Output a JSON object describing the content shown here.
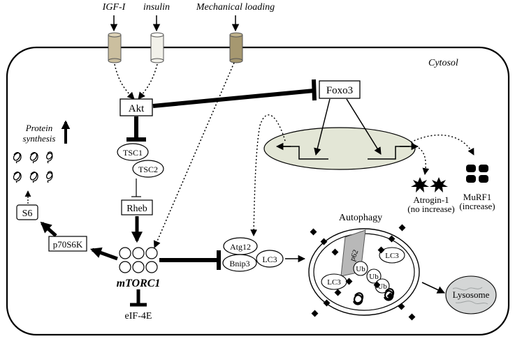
{
  "inputs": {
    "igf1": "IGF-I",
    "insulin": "insulin",
    "mechanical": "Mechanical loading"
  },
  "compartment": "Cytosol",
  "nodes": {
    "akt": "Akt",
    "foxo3": "Foxo3",
    "tsc1": "TSC1",
    "tsc2": "TSC2",
    "rheb": "Rheb",
    "mtorc1": "mTORC1",
    "eif4e": "eIF-4E",
    "p70s6k": "p70S6K",
    "s6": "S6",
    "protein_synthesis_line1": "Protein",
    "protein_synthesis_line2": "synthesis",
    "atg12": "Atg12",
    "bnip3": "Bnip3",
    "lc3": "LC3",
    "autophagy": "Autophagy",
    "lysosome": "Lysosome",
    "p62": "p62",
    "lc3_a": "LC3",
    "lc3_b": "LC3",
    "ub1": "Ub",
    "ub2": "Ub",
    "ub3": "Ub",
    "atrogin_line1": "Atrogin-1",
    "atrogin_line2": "(no increase)",
    "murf_line1": "MuRF1",
    "murf_line2": "(increase)"
  },
  "colors": {
    "line": "#000000",
    "nucleus_fill": "#e3e6d6",
    "igf_receptor": "#cbbf9f",
    "insulin_receptor": "#f2f1ea",
    "mech_receptor": "#a69870",
    "p62_fill": "#b8b8b8",
    "lysosome_fill": "#d4d6d6"
  }
}
